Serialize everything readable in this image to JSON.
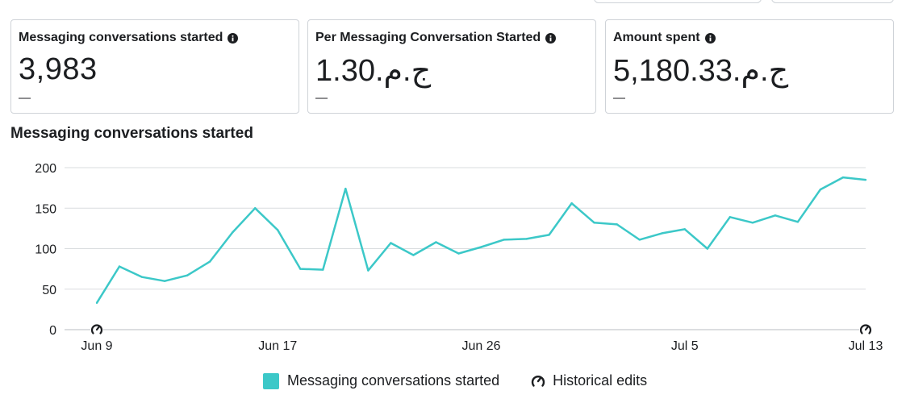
{
  "cards": [
    {
      "title": "Messaging conversations started",
      "value": "3,983",
      "delta": "—"
    },
    {
      "title": "Per Messaging Conversation Started",
      "value": "1.30.ج.م",
      "delta": "—"
    },
    {
      "title": "Amount spent",
      "value": "5,180.33.ج.م",
      "delta": "—"
    }
  ],
  "icons": {
    "info": "info-circle-icon",
    "historical_edits": "gauge-edit-icon"
  },
  "chart_title": "Messaging conversations started",
  "legend": {
    "series_label": "Messaging conversations started",
    "historical_label": "Historical edits"
  },
  "colors": {
    "series": "#3cc8c8",
    "grid": "#d9dcdf",
    "text": "#1c1e21"
  },
  "chart_data": {
    "type": "line",
    "x": [
      "Jun 9",
      "Jun 10",
      "Jun 11",
      "Jun 12",
      "Jun 13",
      "Jun 14",
      "Jun 15",
      "Jun 16",
      "Jun 17",
      "Jun 18",
      "Jun 19",
      "Jun 20",
      "Jun 21",
      "Jun 22",
      "Jun 23",
      "Jun 24",
      "Jun 25",
      "Jun 26",
      "Jun 27",
      "Jun 28",
      "Jun 29",
      "Jun 30",
      "Jul 1",
      "Jul 2",
      "Jul 3",
      "Jul 4",
      "Jul 5",
      "Jul 6",
      "Jul 7",
      "Jul 8",
      "Jul 9",
      "Jul 10",
      "Jul 11",
      "Jul 12",
      "Jul 13"
    ],
    "series": [
      {
        "name": "Messaging conversations started",
        "values": [
          33,
          78,
          65,
          60,
          67,
          84,
          120,
          150,
          123,
          75,
          74,
          174,
          73,
          107,
          92,
          108,
          94,
          102,
          111,
          112,
          117,
          156,
          132,
          130,
          111,
          119,
          124,
          100,
          139,
          132,
          141,
          133,
          173,
          188,
          185
        ]
      }
    ],
    "x_tick_labels": [
      "Jun 9",
      "Jun 17",
      "Jun 26",
      "Jul 5",
      "Jul 13"
    ],
    "y_ticks": [
      0,
      50,
      100,
      150,
      200
    ],
    "ylim": [
      0,
      200
    ],
    "grid": true,
    "legend_position": "bottom-center",
    "historical_edit_markers": [
      "Jun 9",
      "Jul 13"
    ]
  }
}
